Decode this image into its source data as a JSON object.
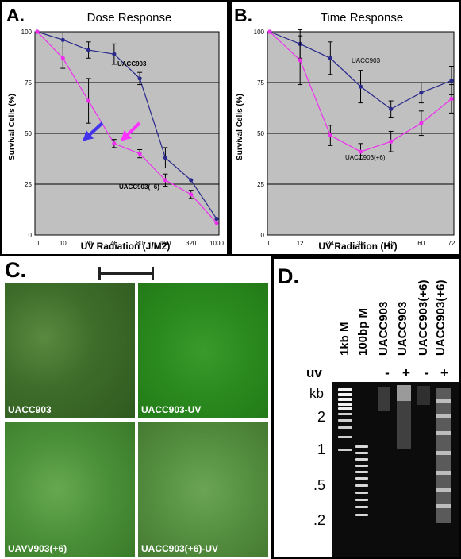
{
  "chart_data": [
    {
      "panel": "A.",
      "type": "line",
      "title": "Dose Response",
      "xlabel": "UV Radiation (J/M2)",
      "ylabel": "Survival Cells (%)",
      "categories": [
        "0",
        "10",
        "20",
        "40",
        "80",
        "160",
        "320",
        "1000"
      ],
      "ylim": [
        0,
        100
      ],
      "yticks": [
        "0",
        "25",
        "50",
        "75",
        "100"
      ],
      "grid": "horizontal",
      "series": [
        {
          "name": "UACC903",
          "color": "#2a2a8c",
          "values": [
            100,
            96,
            91,
            89,
            77,
            38,
            27,
            8
          ],
          "errors": [
            0,
            4,
            4,
            5,
            3,
            5,
            0,
            0
          ]
        },
        {
          "name": "UACC903(+6)",
          "color": "#ee30ee",
          "values": [
            100,
            87,
            66,
            45,
            40,
            27,
            20,
            6
          ],
          "errors": [
            0,
            5,
            11,
            2,
            2,
            3,
            2,
            0
          ]
        }
      ],
      "arrows": [
        {
          "color": "#ff33ff"
        },
        {
          "color": "#4433ee"
        }
      ]
    },
    {
      "panel": "B.",
      "type": "line",
      "title": "Time Response",
      "xlabel": "UV Radiation (Hr)",
      "ylabel": "Survival Cells (%)",
      "categories": [
        "0",
        "12",
        "24",
        "36",
        "48",
        "60",
        "72"
      ],
      "ylim": [
        0,
        100
      ],
      "yticks": [
        "0",
        "25",
        "50",
        "75",
        "100"
      ],
      "grid": "horizontal",
      "series": [
        {
          "name": "UACC903",
          "color": "#2a2a8c",
          "values": [
            100,
            94,
            87,
            73,
            62,
            70,
            76
          ],
          "errors": [
            0,
            7,
            8,
            8,
            4,
            5,
            7
          ]
        },
        {
          "name": "UACC903(+6)",
          "color": "#ee30ee",
          "values": [
            100,
            86,
            49,
            41,
            46,
            55,
            67
          ],
          "errors": [
            0,
            12,
            5,
            4,
            5,
            6,
            7
          ]
        }
      ]
    }
  ],
  "panel_c": {
    "label": "C.",
    "images": [
      "UACC903",
      "UACC903-UV",
      "UAVV903(+6)",
      "UACC903(+6)-UV"
    ]
  },
  "panel_d": {
    "label": "D.",
    "lanes": [
      "1kb M",
      "100bp M",
      "UACC903",
      "UACC903",
      "UACC903(+6)",
      "UACC903(+6)"
    ],
    "uv_label": "uv",
    "uv_signs": [
      "-",
      "+",
      "-",
      "+"
    ],
    "size_unit": "kb",
    "size_labels": [
      "2",
      "1",
      ".5",
      ".2"
    ]
  }
}
